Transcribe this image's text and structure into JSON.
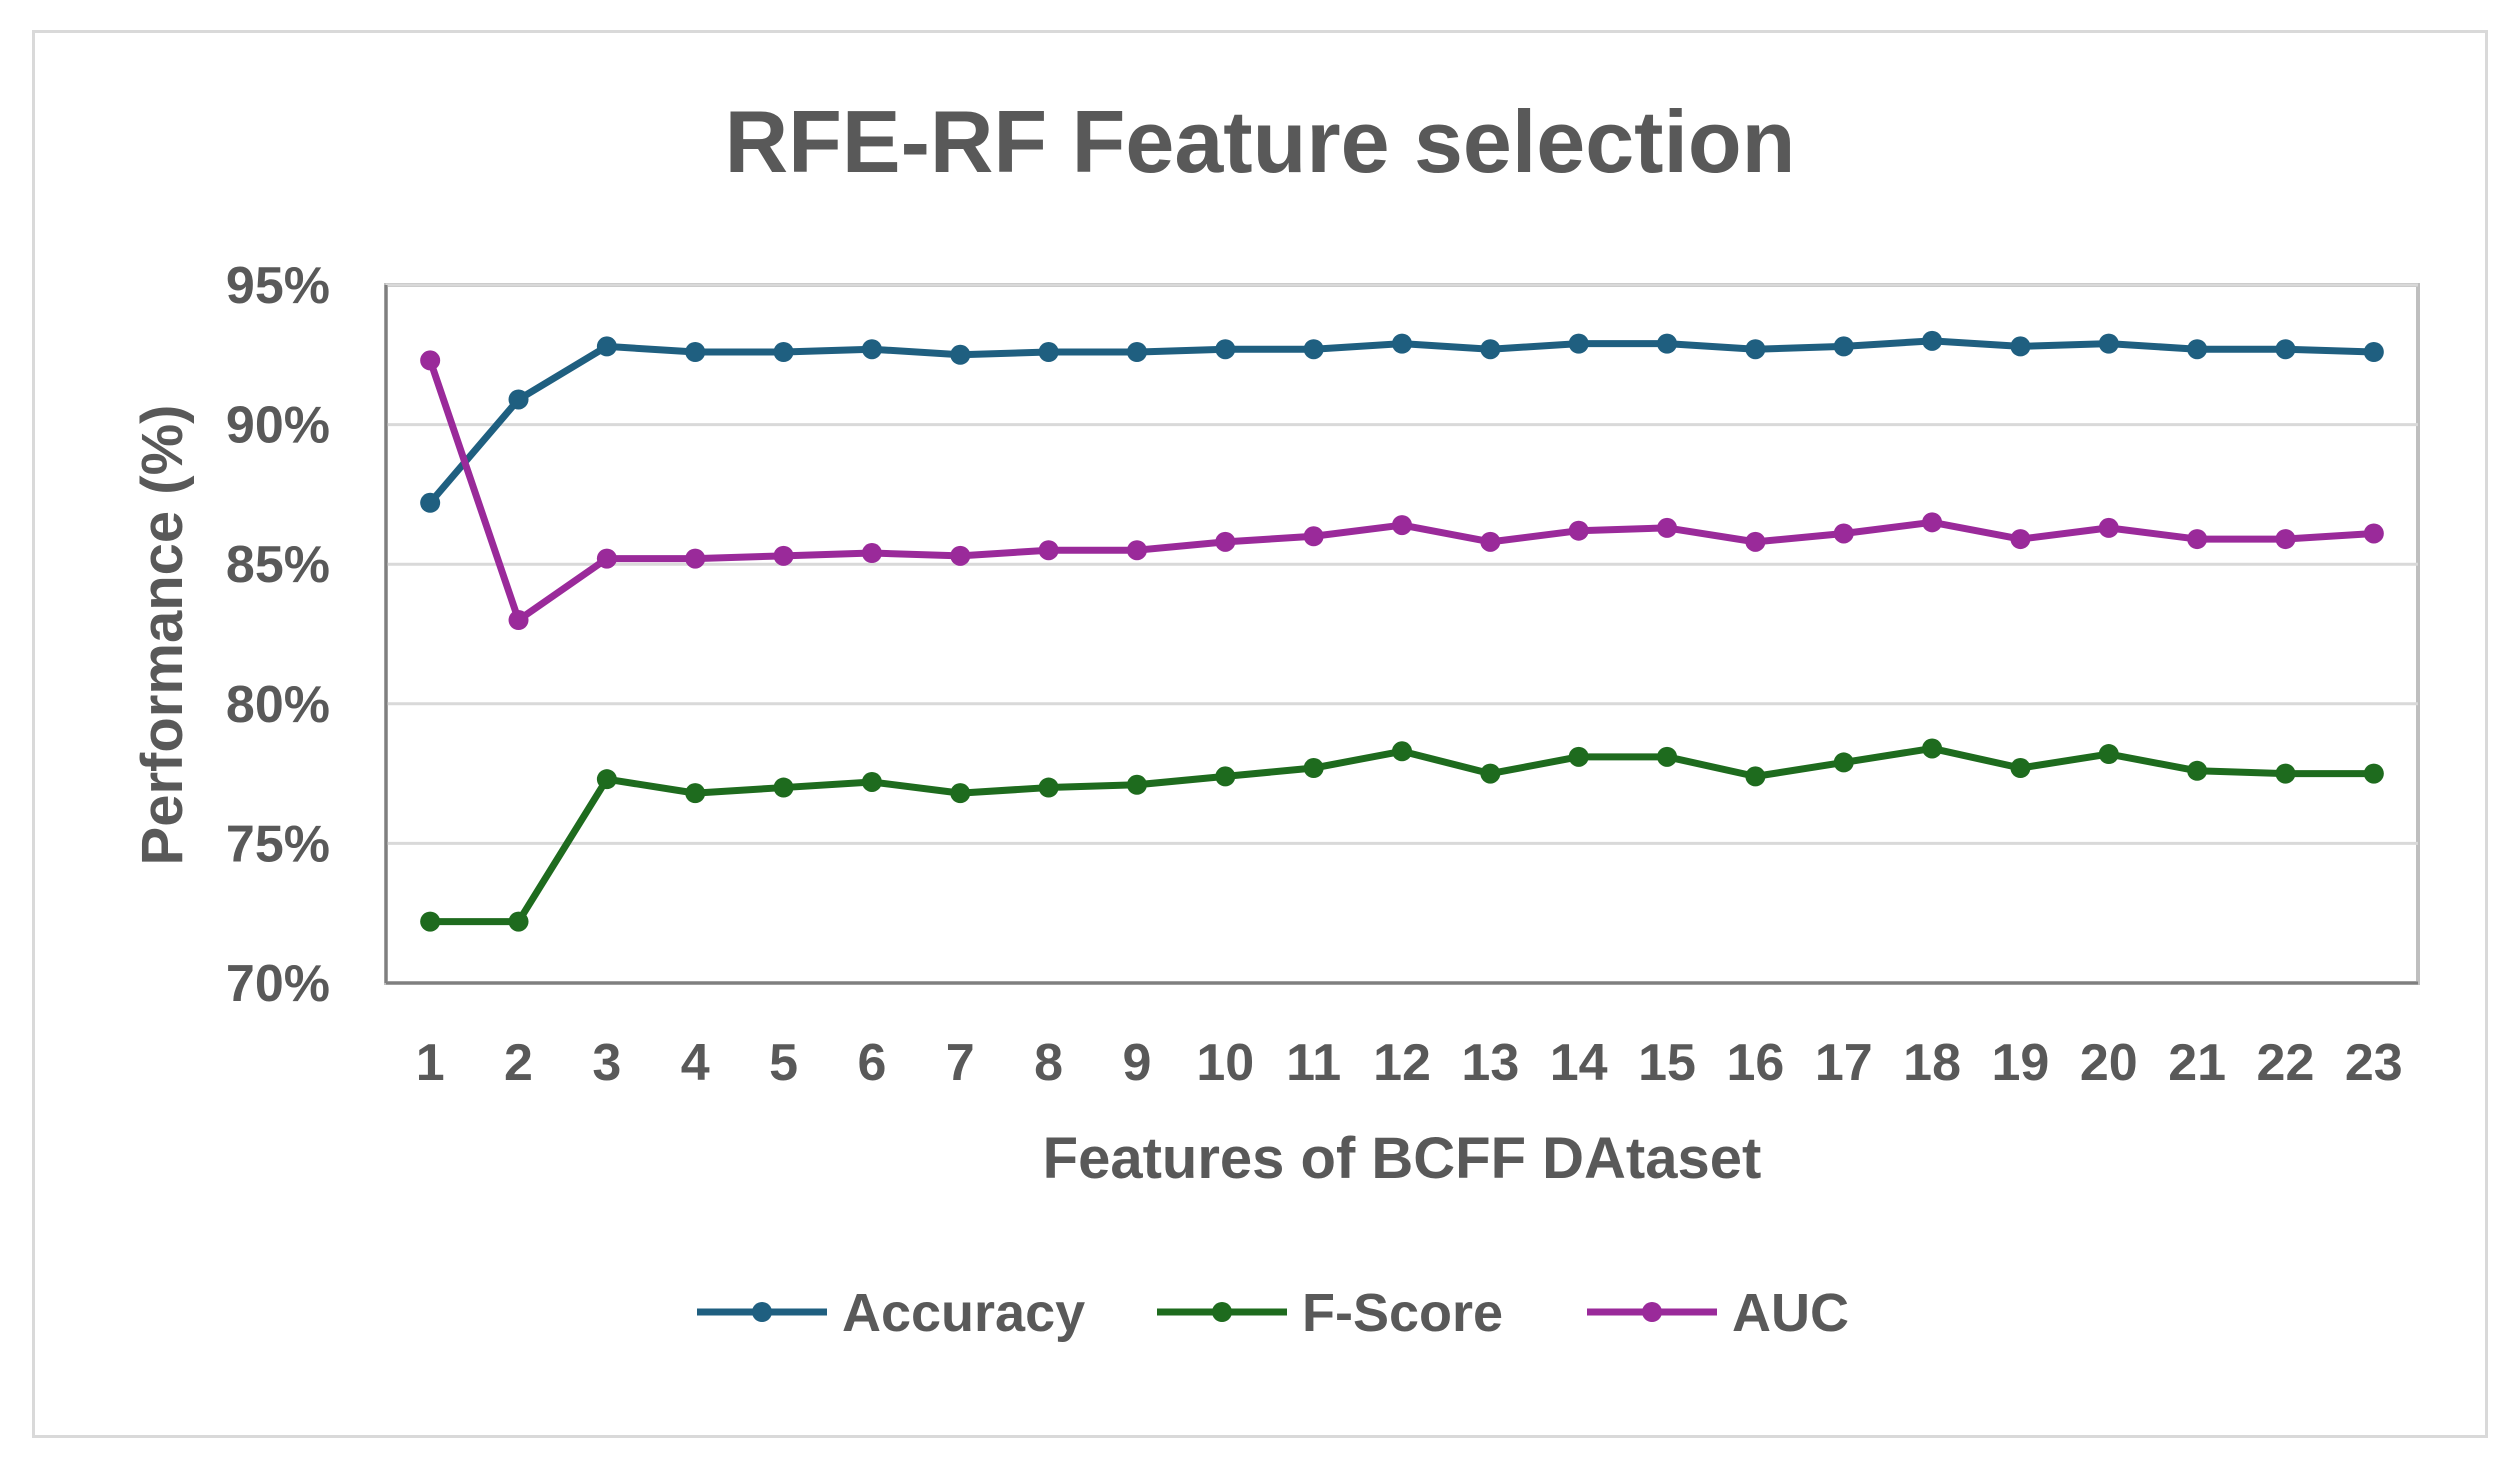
{
  "chart_data": {
    "type": "line",
    "title": "RFE-RF Feature selection",
    "xlabel": "Features of BCFF DAtaset",
    "ylabel": "Performance  (%)",
    "categories": [
      "1",
      "2",
      "3",
      "4",
      "5",
      "6",
      "7",
      "8",
      "9",
      "10",
      "11",
      "12",
      "13",
      "14",
      "15",
      "16",
      "17",
      "18",
      "19",
      "20",
      "21",
      "22",
      "23"
    ],
    "ylim": [
      70,
      95
    ],
    "yticks": [
      95,
      90,
      85,
      80,
      75,
      70
    ],
    "ytick_labels": [
      "95%",
      "90%",
      "85%",
      "80%",
      "75%",
      "70%"
    ],
    "grid": true,
    "legend_position": "bottom",
    "series": [
      {
        "name": "Accuracy",
        "color": "#1f5f80",
        "values": [
          87.2,
          90.9,
          92.8,
          92.6,
          92.6,
          92.7,
          92.5,
          92.6,
          92.6,
          92.7,
          92.7,
          92.9,
          92.7,
          92.9,
          92.9,
          92.7,
          92.8,
          93.0,
          92.8,
          92.9,
          92.7,
          92.7,
          92.6
        ]
      },
      {
        "name": "F-Score",
        "color": "#1e6b1e",
        "values": [
          72.2,
          72.2,
          77.3,
          76.8,
          77.0,
          77.2,
          76.8,
          77.0,
          77.1,
          77.4,
          77.7,
          78.3,
          77.5,
          78.1,
          78.1,
          77.4,
          77.9,
          78.4,
          77.7,
          78.2,
          77.6,
          77.5,
          77.5
        ]
      },
      {
        "name": "AUC",
        "color": "#9a2a9a",
        "values": [
          92.3,
          83.0,
          85.2,
          85.2,
          85.3,
          85.4,
          85.3,
          85.5,
          85.5,
          85.8,
          86.0,
          86.4,
          85.8,
          86.2,
          86.3,
          85.8,
          86.1,
          86.5,
          85.9,
          86.3,
          85.9,
          85.9,
          86.1
        ]
      }
    ]
  }
}
